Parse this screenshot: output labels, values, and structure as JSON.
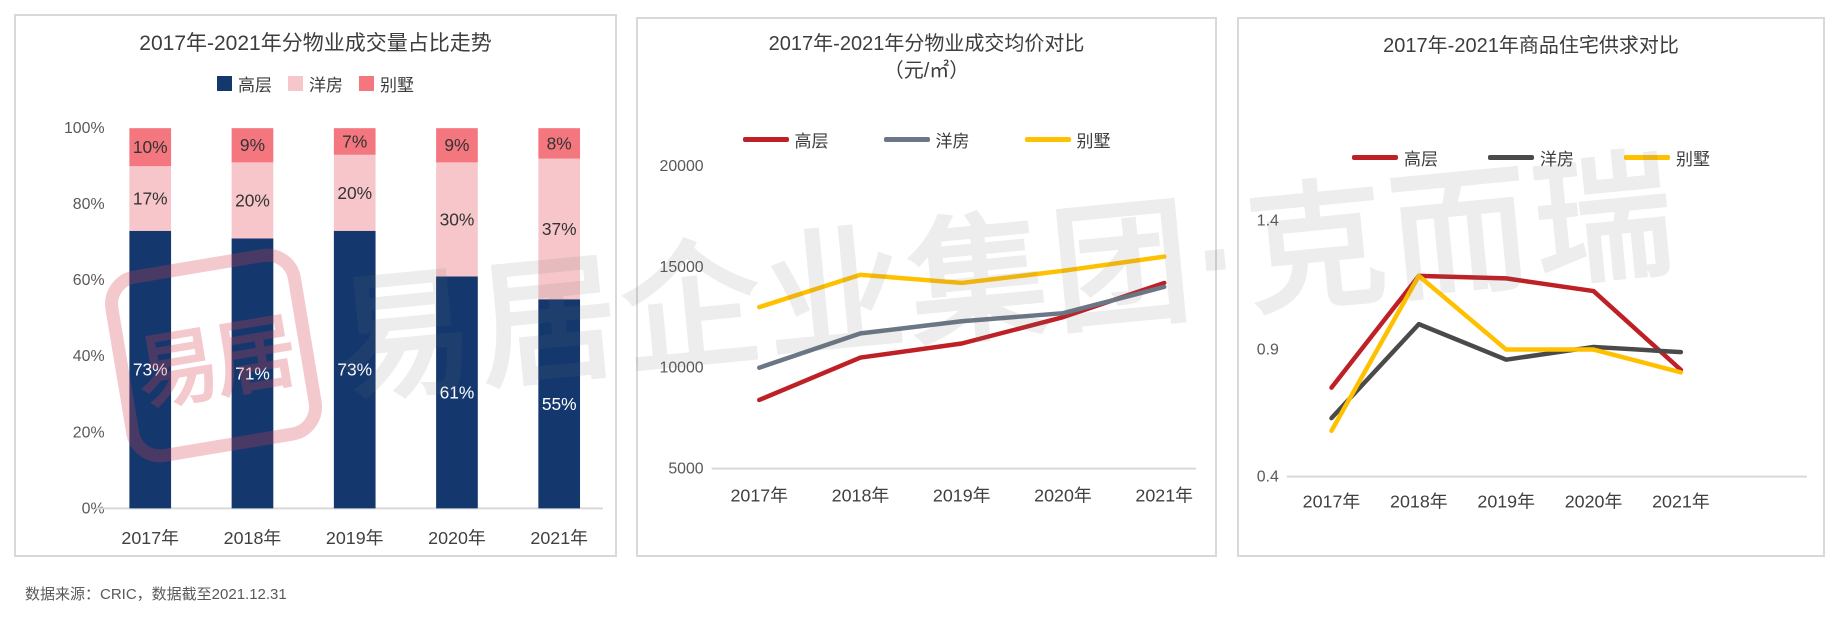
{
  "chart_data": [
    {
      "type": "bar",
      "stacked": true,
      "title": "2017年-2021年分物业成交量占比走势",
      "categories": [
        "2017年",
        "2018年",
        "2019年",
        "2020年",
        "2021年"
      ],
      "series": [
        {
          "name": "高层",
          "color": "#14386e",
          "label_color": "#ffffff",
          "values": [
            73,
            71,
            73,
            61,
            55
          ]
        },
        {
          "name": "洋房",
          "color": "#f7c6ca",
          "label_color": "#333333",
          "values": [
            17,
            20,
            20,
            30,
            37
          ]
        },
        {
          "name": "别墅",
          "color": "#f4767f",
          "label_color": "#333333",
          "values": [
            10,
            9,
            7,
            9,
            8
          ]
        }
      ],
      "value_suffix": "%",
      "y_ticks": [
        "100%",
        "80%",
        "60%",
        "40%",
        "20%",
        "0%"
      ],
      "ylim": [
        0,
        100
      ],
      "legend_position": "top",
      "grid": false
    },
    {
      "type": "line",
      "title": "2017年-2021年分物业成交均价对比",
      "subtitle": "（元/㎡）",
      "categories": [
        "2017年",
        "2018年",
        "2019年",
        "2020年",
        "2021年"
      ],
      "series": [
        {
          "name": "高层",
          "color": "#bf2026",
          "values": [
            8400,
            10500,
            11200,
            12500,
            14200
          ]
        },
        {
          "name": "洋房",
          "color": "#6b7786",
          "values": [
            10000,
            11700,
            12300,
            12700,
            14000
          ]
        },
        {
          "name": "别墅",
          "color": "#ffc000",
          "values": [
            13000,
            14600,
            14200,
            14800,
            15500
          ]
        }
      ],
      "y_ticks": [
        20000,
        15000,
        10000,
        5000
      ],
      "ylim": [
        5000,
        21500
      ],
      "legend_position": "top",
      "grid": false
    },
    {
      "type": "line",
      "title": "2017年-2021年商品住宅供求对比",
      "categories": [
        "2017年",
        "2018年",
        "2019年",
        "2020年",
        "2021年"
      ],
      "series": [
        {
          "name": "高层",
          "color": "#bf2026",
          "values": [
            0.75,
            1.19,
            1.18,
            1.13,
            0.82
          ]
        },
        {
          "name": "洋房",
          "color": "#4a4a4a",
          "values": [
            0.63,
            1.0,
            0.86,
            0.91,
            0.89
          ]
        },
        {
          "name": "别墅",
          "color": "#ffc000",
          "values": [
            0.58,
            1.19,
            0.9,
            0.9,
            0.81
          ]
        }
      ],
      "y_ticks": [
        1.4,
        0.9,
        0.4
      ],
      "ylim": [
        0.4,
        1.5
      ],
      "legend_position": "top",
      "grid": false
    }
  ],
  "colors": {
    "highrise_bar": "#14386e",
    "garden_bar": "#f7c6ca",
    "villa_bar": "#f4767f",
    "line_red": "#bf2026",
    "line_slate": "#6b7786",
    "line_dark_gray": "#4a4a4a",
    "line_yellow": "#ffc000",
    "axis_line": "#d9d9d9",
    "tick_text": "#595959",
    "title_text": "#3d3d3d"
  },
  "watermark": {
    "stamp_text": "易居",
    "brand_text": "易居企业集团·克而瑞"
  },
  "footer": {
    "source_note": "数据来源：CRIC，数据截至2021.12.31"
  }
}
